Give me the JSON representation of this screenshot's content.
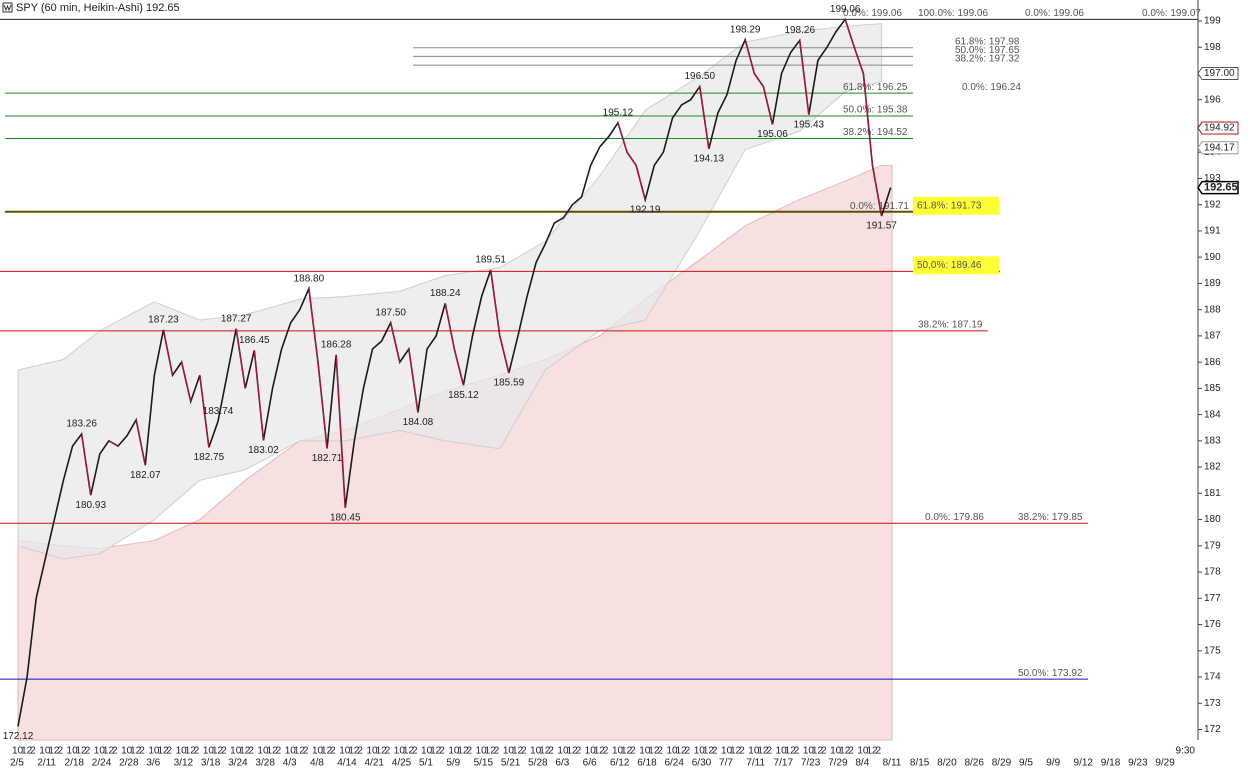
{
  "chart_data": {
    "type": "line",
    "title": "SPY (60 min, Heikin-Ashi) 192.65",
    "categories": [
      "2/5",
      null,
      null,
      "2/11",
      null,
      null,
      "2/18",
      null,
      null,
      "2/24",
      null,
      null,
      "2/28",
      null,
      null,
      "3/6",
      null,
      null,
      "3/12",
      null,
      null,
      "3/18",
      null,
      null,
      "3/24",
      null,
      null,
      "3/28",
      null,
      null,
      "4/3",
      null,
      null,
      "4/8",
      null,
      null,
      "4/14",
      null,
      null,
      "4/21",
      null,
      null,
      "4/25",
      null,
      null,
      "5/1",
      null,
      null,
      "5/9",
      null,
      null,
      "5/15",
      null,
      null,
      "5/21",
      null,
      null,
      "5/28",
      null,
      null,
      "6/3",
      null,
      null,
      "6/6",
      null,
      null,
      "6/12",
      null,
      null,
      "6/18",
      null,
      null,
      "6/24",
      null,
      null,
      "6/30",
      null,
      null,
      "7/7",
      null,
      null,
      "7/11",
      null,
      null,
      "7/17",
      null,
      null,
      "7/23",
      null,
      null,
      "7/29",
      null,
      null,
      "8/4",
      null,
      null,
      "8/11",
      null,
      null,
      "8/15",
      null,
      null,
      "8/20",
      null,
      null,
      "8/26",
      null,
      null,
      "8/29",
      null,
      null,
      "9/5",
      null,
      null,
      "9/9",
      null,
      null,
      "9/12",
      null,
      null,
      "9/18",
      null,
      null,
      "9/23",
      null,
      null,
      "9/29",
      null,
      null
    ],
    "hour_labels": [
      "10",
      "12",
      "2",
      "10",
      "12",
      "2",
      "10",
      "12",
      "2",
      "10",
      "12",
      "2",
      "10",
      "12",
      "2",
      "10",
      "12",
      "2",
      "10",
      "12",
      "2",
      "10",
      "12",
      "2",
      "10",
      "12",
      "2",
      "10",
      "12",
      "2",
      "10",
      "12",
      "2",
      "10",
      "12",
      "2",
      "10",
      "12",
      "2",
      "10",
      "12",
      "2",
      "10",
      "12",
      "2",
      "10",
      "12",
      "2",
      "10",
      "12",
      "2",
      "10",
      "12",
      "2",
      "10",
      "12",
      "2",
      "10",
      "12",
      "2",
      "10",
      "12",
      "2",
      "10",
      "12",
      "2",
      "10",
      "12",
      "2",
      "10",
      "12",
      "2",
      "10",
      "12",
      "2",
      "10",
      "12",
      "2",
      "10",
      "12",
      "2",
      "10",
      "12",
      "2",
      "10",
      "12",
      "2",
      "10",
      "12",
      "2",
      "10",
      "12",
      "2",
      "10",
      "12",
      "2",
      null,
      null,
      null,
      null,
      null,
      null,
      null,
      null,
      null,
      null,
      null,
      null,
      null,
      null,
      null,
      null,
      null,
      null,
      null,
      null,
      null,
      null,
      null,
      null,
      null,
      null,
      null,
      null,
      null,
      null,
      null,
      null,
      "9:30"
    ],
    "series": [
      {
        "name": "SPY",
        "color": "#1a1a1a",
        "values": [
          172.12,
          174,
          177,
          178.5,
          180,
          181.5,
          182.8,
          183.26,
          180.93,
          182.5,
          183,
          182.8,
          183.2,
          183.8,
          182.07,
          185.5,
          187.23,
          185.5,
          186,
          184.5,
          185.5,
          182.75,
          183.74,
          185.5,
          187.27,
          185,
          186.45,
          183.02,
          185,
          186.5,
          187.5,
          188,
          188.8,
          186,
          182.71,
          186.28,
          180.45,
          183,
          185,
          186.5,
          186.8,
          187.5,
          186,
          186.5,
          184.08,
          186.5,
          187,
          188.24,
          186.5,
          185.12,
          187,
          188.5,
          189.51,
          187,
          185.59,
          187,
          188.5,
          189.8,
          190.5,
          191.3,
          191.5,
          192,
          192.3,
          193.5,
          194.2,
          194.6,
          195.12,
          194,
          193.5,
          192.19,
          193.5,
          194,
          195.3,
          195.8,
          196,
          196.5,
          194.13,
          195.5,
          196.2,
          197.5,
          198.29,
          197,
          196.5,
          195.06,
          197,
          197.8,
          198.26,
          195.43,
          197.5,
          198,
          198.6,
          199.06,
          198,
          197,
          193.5,
          191.57,
          192.65,
          null,
          null,
          null,
          null,
          null,
          null,
          null,
          null,
          null,
          null,
          null,
          null,
          null,
          null,
          null,
          null,
          null,
          null,
          null,
          null,
          null,
          null,
          null,
          null,
          null,
          null,
          null,
          null,
          null,
          null,
          null,
          null
        ],
        "value_labels": [
          "172.12",
          null,
          null,
          null,
          null,
          null,
          null,
          "183.26",
          "180.93",
          null,
          null,
          null,
          null,
          null,
          "182.07",
          null,
          "187.23",
          null,
          null,
          null,
          null,
          "182.75",
          "183.74",
          null,
          "187.27",
          null,
          "186.45",
          "183.02",
          null,
          null,
          null,
          null,
          "188.80",
          null,
          "182.71",
          "186.28",
          "180.45",
          null,
          null,
          null,
          null,
          "187.50",
          null,
          null,
          "184.08",
          null,
          null,
          "188.24",
          null,
          "185.12",
          null,
          null,
          "189.51",
          null,
          "185.59",
          null,
          null,
          null,
          null,
          null,
          null,
          null,
          null,
          null,
          null,
          null,
          "195.12",
          null,
          null,
          "192.19",
          null,
          null,
          null,
          null,
          null,
          "196.50",
          "194.13",
          null,
          null,
          null,
          "198.29",
          null,
          null,
          "195.06",
          null,
          null,
          "198.26",
          "195.43",
          null,
          null,
          null,
          "199.06",
          null,
          null,
          null,
          "191.57",
          null,
          null,
          null,
          null,
          null,
          null,
          null,
          null,
          null,
          null,
          null,
          null,
          null,
          null,
          null,
          null,
          null,
          null,
          null,
          null,
          null,
          null,
          null,
          null,
          null,
          null,
          null,
          null,
          null,
          null,
          null,
          null,
          null
        ]
      }
    ],
    "bands": {
      "color": "#e8e8e8",
      "x": [
        0,
        5,
        9,
        15,
        20,
        25,
        31,
        36,
        42,
        47,
        53,
        58,
        64,
        69,
        75,
        80,
        86,
        91,
        95
      ],
      "upper": [
        185.7,
        186.1,
        187.2,
        188.3,
        187.6,
        187.8,
        188.4,
        188.5,
        188.7,
        189.3,
        189.6,
        190.6,
        193.1,
        195.6,
        196.9,
        198.2,
        198.6,
        198.8,
        198.9
      ],
      "lower": [
        179.0,
        178.5,
        178.7,
        180.0,
        181.5,
        181.9,
        183.0,
        183.0,
        183.4,
        183.0,
        182.7,
        185.7,
        187.2,
        187.6,
        191.0,
        194.1,
        194.8,
        196.3,
        196.7
      ]
    },
    "envelope": {
      "color": "#f6e0e0",
      "x": [
        0,
        5,
        9,
        15,
        20,
        25,
        31,
        36,
        42,
        47,
        53,
        58,
        64,
        69,
        75,
        80,
        86,
        91,
        95
      ],
      "upper": [
        179.2,
        179.0,
        178.9,
        179.2,
        180.0,
        181.5,
        183.0,
        183.4,
        184.2,
        184.9,
        185.5,
        186.1,
        187.0,
        188.4,
        189.9,
        191.2,
        192.2,
        192.9,
        193.5
      ]
    },
    "levels": [
      {
        "value": 199.06,
        "color": "#222222"
      },
      {
        "value": 197.98,
        "color": "#888888"
      },
      {
        "value": 197.65,
        "color": "#888888"
      },
      {
        "value": 197.32,
        "color": "#888888"
      },
      {
        "value": 196.25,
        "color": "#1f8a1f"
      },
      {
        "value": 195.38,
        "color": "#1f8a1f"
      },
      {
        "value": 194.52,
        "color": "#1f8a1f"
      },
      {
        "value": 191.73,
        "color": "#5a5000"
      },
      {
        "value": 189.46,
        "color": "#d01010"
      },
      {
        "value": 187.19,
        "color": "#d01010"
      },
      {
        "value": 179.86,
        "color": "#d01010"
      },
      {
        "value": 173.92,
        "color": "#1010c0"
      }
    ],
    "level_labels": [
      {
        "text": "0.0%: 199.06",
        "value": 199.06
      },
      {
        "text": "100.0%: 199.06",
        "value": 199.06
      },
      {
        "text": "0.0%: 199.06",
        "value": 199.06
      },
      {
        "text": "0.0%: 199.07",
        "value": 199.07
      },
      {
        "text": "61.8%: 197.98",
        "value": 197.98
      },
      {
        "text": "50.0%: 197.65",
        "value": 197.65
      },
      {
        "text": "38.2%: 197.32",
        "value": 197.32
      },
      {
        "text": "61.8%: 196.25",
        "value": 196.25
      },
      {
        "text": "0.0%: 196.24",
        "value": 196.24
      },
      {
        "text": "50.0%: 195.38",
        "value": 195.38
      },
      {
        "text": "38.2%: 194.52",
        "value": 194.52
      },
      {
        "text": "0.0%: 191.71",
        "value": 191.71
      },
      {
        "text": "61.8%: 191.73",
        "value": 191.73,
        "highlight": true
      },
      {
        "text": "50.0%: 189.46",
        "value": 189.46,
        "highlight": true
      },
      {
        "text": "38.2%: 187.19",
        "value": 187.19
      },
      {
        "text": "0.0%: 179.86",
        "value": 179.86
      },
      {
        "text": "38.2%: 179.85",
        "value": 179.85
      },
      {
        "text": "50.0%: 173.92",
        "value": 173.92
      }
    ],
    "price_markers": [
      {
        "value": 197,
        "label": "197.00",
        "color": "#555555"
      },
      {
        "value": 194.92,
        "label": "194.92",
        "color": "#c01010"
      },
      {
        "value": 194.17,
        "label": "194.17",
        "color": "#999999"
      },
      {
        "value": 192.65,
        "label": "192.65",
        "color": "#000000"
      }
    ],
    "ylim": [
      171.6,
      199.8
    ],
    "yticks": [
      172,
      173,
      174,
      175,
      176,
      177,
      178,
      179,
      180,
      181,
      182,
      183,
      184,
      185,
      186,
      187,
      188,
      189,
      190,
      191,
      192,
      193,
      194,
      195,
      196,
      197,
      198,
      199
    ]
  }
}
